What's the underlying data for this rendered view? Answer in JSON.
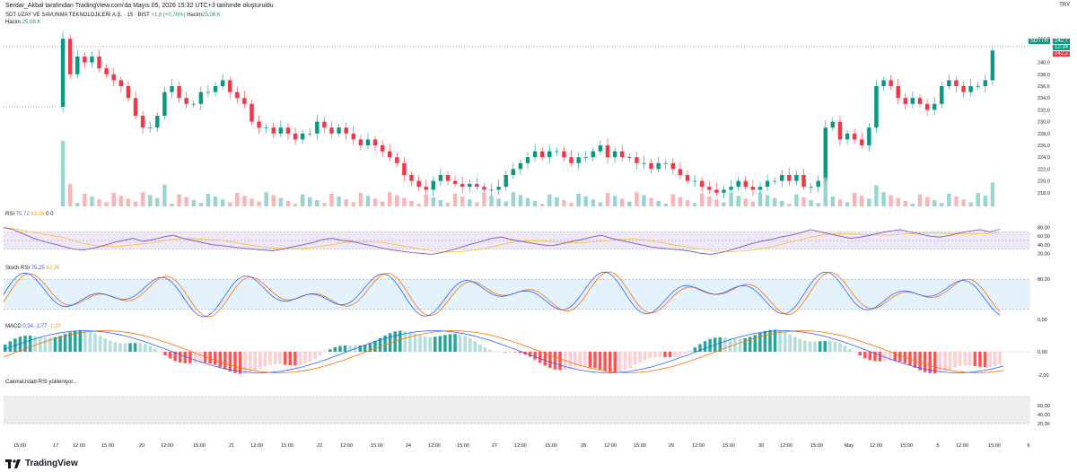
{
  "header": {
    "published_by": "Serdar_Akbal tarafından TradingView.com'da Mayıs 05, 2026 15:32 UTC+3 tarihinde oluşturuldu",
    "symbol_line": "SDT UZAY VE SAVUNMA TEKNOLOJILERI A.Ş. · 15 · BIST",
    "change": "+1,8 (+0,76%)",
    "volume_label": "Hacim",
    "volume_value": "25,08 K",
    "volume_row_label": "Hacim",
    "volume_row_value": "25,08 K"
  },
  "currency": "TRY",
  "price_badges": {
    "ticker": "SDTTR",
    "last": "242,7",
    "time_left": "12:34",
    "prev": "242,2"
  },
  "chart_data": [
    {
      "type": "candlestick",
      "title": "SDT UZAY VE SAVUNMA TEKNOLOJILERI A.Ş. · 15 · BIST",
      "ylim": [
        216,
        246
      ],
      "y_ticks": [
        "244,0",
        "240,0",
        "238,0",
        "236,0",
        "234,0",
        "232,0",
        "230,0",
        "228,0",
        "226,0",
        "224,0",
        "222,0",
        "220,0",
        "218,0"
      ],
      "y_tick_values": [
        244,
        240,
        238,
        236,
        234,
        232,
        230,
        228,
        226,
        224,
        222,
        220,
        218
      ],
      "x_labels": [
        "15:00",
        "17",
        "12:00",
        "15:00",
        "20",
        "12:00",
        "15:00",
        "21",
        "12:00",
        "15:00",
        "22",
        "12:00",
        "15:00",
        "24",
        "12:00",
        "15:00",
        "27",
        "12:00",
        "15:00",
        "28",
        "12:00",
        "15:00",
        "29",
        "12:00",
        "15:00",
        "30",
        "12:00",
        "15:00",
        "May",
        "12:00",
        "15:00",
        "5",
        "12:00",
        "15:00",
        "6"
      ],
      "close_path": [
        232.5,
        232.5,
        244,
        238,
        241,
        240,
        241,
        239,
        238,
        237,
        236,
        234,
        231,
        229,
        229,
        231,
        235,
        236,
        234,
        233,
        233,
        235,
        235,
        236,
        237,
        235,
        234,
        233,
        230,
        229,
        229,
        228,
        229,
        228,
        227,
        228,
        228,
        230,
        229,
        228,
        229,
        228,
        227,
        226,
        227,
        226,
        225,
        224,
        223,
        221,
        220,
        219,
        218.5,
        220,
        221,
        220,
        219.5,
        219,
        219.5,
        219,
        218.5,
        218.5,
        219,
        221,
        222,
        223,
        224,
        225,
        224,
        225,
        225,
        224,
        223,
        224,
        224,
        225,
        226,
        224,
        225,
        224,
        224,
        223,
        223,
        222,
        223,
        223,
        222,
        221,
        220,
        220,
        219,
        218.5,
        218,
        218.5,
        219,
        220,
        219,
        218.5,
        219,
        220,
        220,
        221,
        220,
        221,
        219,
        219,
        220,
        229,
        230,
        227,
        228,
        227,
        226,
        229,
        236,
        237,
        236,
        234,
        233,
        234,
        233,
        232,
        233,
        236,
        237,
        236,
        235,
        236,
        236,
        237,
        242
      ],
      "last_price": 242.7
    },
    {
      "type": "line",
      "title": "RSI",
      "series": [
        {
          "name": "RSI",
          "values": [
            75.72
          ]
        },
        {
          "name": "MA",
          "values": [
            63.26
          ]
        }
      ],
      "header_values": [
        "75,72",
        "63,26",
        "0",
        "0"
      ],
      "ylim": [
        0,
        100
      ],
      "y_ticks": [
        "80,00",
        "60,00",
        "40,00",
        "20,00"
      ],
      "rsi_path": [
        80,
        75,
        65,
        55,
        48,
        42,
        36,
        30,
        28,
        32,
        38,
        45,
        50,
        55,
        48,
        52,
        58,
        62,
        55,
        50,
        45,
        40,
        38,
        35,
        32,
        30,
        28,
        26,
        30,
        35,
        40,
        45,
        52,
        55,
        50,
        48,
        42,
        38,
        32,
        28,
        25,
        22,
        20,
        18,
        22,
        28,
        35,
        42,
        48,
        55,
        58,
        52,
        48,
        44,
        40,
        38,
        42,
        48,
        52,
        58,
        62,
        55,
        50,
        45,
        40,
        35,
        32,
        30,
        28,
        25,
        20,
        18,
        22,
        28,
        35,
        42,
        48,
        52,
        58,
        62,
        68,
        75,
        70,
        65,
        60,
        55,
        58,
        62,
        68,
        72,
        75,
        70,
        65,
        60,
        58,
        62,
        68,
        72,
        75,
        70,
        76
      ]
    },
    {
      "type": "line",
      "title": "Stoch RSI",
      "header_values": [
        "75,25",
        "42,26"
      ],
      "ylim": [
        0,
        100
      ],
      "y_ticks": [
        "80,00",
        "0,00"
      ]
    },
    {
      "type": "bar",
      "title": "MACD",
      "header_values": [
        "0,34",
        "-1,77",
        "-1,20"
      ],
      "y_ticks": [
        "0,00",
        "-2,00"
      ]
    },
    {
      "type": "line",
      "title": "CakmaUstad-RSI yükleniyor...",
      "y_ticks": [
        "60,00",
        "40,00",
        "20,00"
      ]
    }
  ],
  "indicators": {
    "rsi_label": "RSI",
    "rsi_v1": "75,72",
    "rsi_v2": "63,26",
    "rsi_v3": "0",
    "rsi_v4": "0",
    "stoch_label": "Stoch RSI",
    "stoch_v1": "75,25",
    "stoch_v2": "42,26",
    "macd_label": "MACD",
    "macd_v1": "0,34",
    "macd_v2": "-1,77",
    "macd_v3": "-1,20",
    "cakma_label": "CakmaUstad-RSI yükleniyor..."
  },
  "footer": {
    "brand": "TradingView"
  },
  "colors": {
    "up": "#089981",
    "down": "#f23645",
    "rsi": "#7e57c2",
    "rsi_ma": "#fbc02d",
    "stoch_k": "#2962ff",
    "stoch_d": "#ff6d00",
    "macd_up_strong": "#26a69a",
    "macd_up_weak": "#b2dfdb",
    "macd_down_strong": "#ff5252",
    "macd_down_weak": "#ffcdd2",
    "band_fill": "#ede7f6",
    "stoch_band": "#e3f2fd",
    "cakma_fill": "#eeeeee"
  }
}
